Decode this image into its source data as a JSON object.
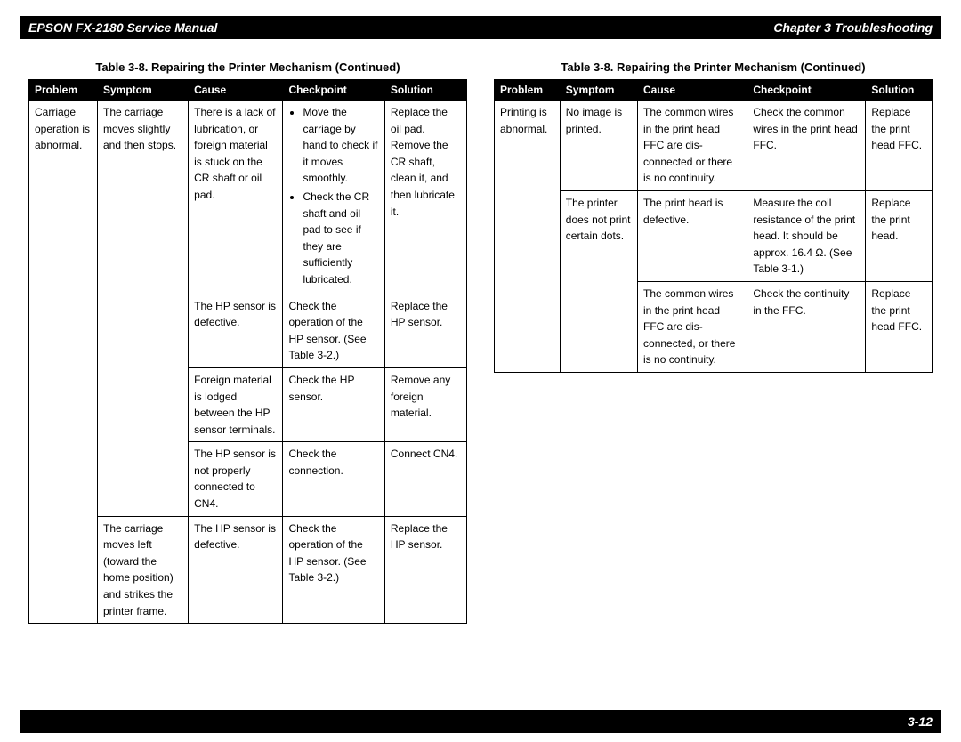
{
  "header": {
    "left": "EPSON FX-2180 Service Manual",
    "right": "Chapter 3  Troubleshooting"
  },
  "footer": {
    "page": "3-12"
  },
  "table_title": "Table 3-8. Repairing the Printer Mechanism (Continued)",
  "columns": [
    "Problem",
    "Symptom",
    "Cause",
    "Checkpoint",
    "Solution"
  ],
  "left_table": {
    "problem": "Carriage operation is abnormal.",
    "groups": [
      {
        "symptom": "The carriage moves slightly and then stops.",
        "rows": [
          {
            "cause": "There is a lack of lubrication, or foreign material is stuck on the CR shaft or oil pad.",
            "checkpoint_bullets": [
              "Move the carriage by hand to check if it moves smoothly.",
              "Check the CR shaft and oil pad to see if they are sufficiently lubricated."
            ],
            "solution": "Replace the oil pad. Remove the CR shaft, clean it, and then lubricate it."
          },
          {
            "cause": "The HP sensor is defective.",
            "checkpoint": "Check the operation of the HP sensor. (See Table 3-2.)",
            "solution": "Replace the HP sensor."
          },
          {
            "cause": "Foreign material is lodged between the HP sensor terminals.",
            "checkpoint": "Check the HP sensor.",
            "solution": "Remove any foreign material."
          },
          {
            "cause": "The HP sensor is not properly connected to CN4.",
            "checkpoint": "Check the connection.",
            "solution": "Connect CN4."
          }
        ]
      },
      {
        "symptom": "The carriage moves left (toward the home position) and strikes the printer frame.",
        "rows": [
          {
            "cause": "The HP sensor is defective.",
            "checkpoint": "Check the operation of the HP sensor. (See Table 3-2.)",
            "solution": "Replace the HP sensor."
          }
        ]
      }
    ]
  },
  "right_table": {
    "problem": "Printing is abnormal.",
    "groups": [
      {
        "symptom": "No image is printed.",
        "rows": [
          {
            "cause": "The common wires in the print head FFC are dis-connected or there is no continuity.",
            "checkpoint": "Check the common wires in the print head FFC.",
            "solution": "Replace the print head FFC."
          }
        ]
      },
      {
        "symptom": "The printer does not print certain dots.",
        "rows": [
          {
            "cause": "The print head is defective.",
            "checkpoint": "Measure the coil resistance of the print head. It should be approx. 16.4 Ω. (See Table 3-1.)",
            "solution": "Replace the print head."
          },
          {
            "cause": "The common wires in the print head FFC are dis-connected, or there is no continuity.",
            "checkpoint": "Check the continuity in the FFC.",
            "solution": "Replace the print head FFC."
          }
        ]
      }
    ]
  }
}
